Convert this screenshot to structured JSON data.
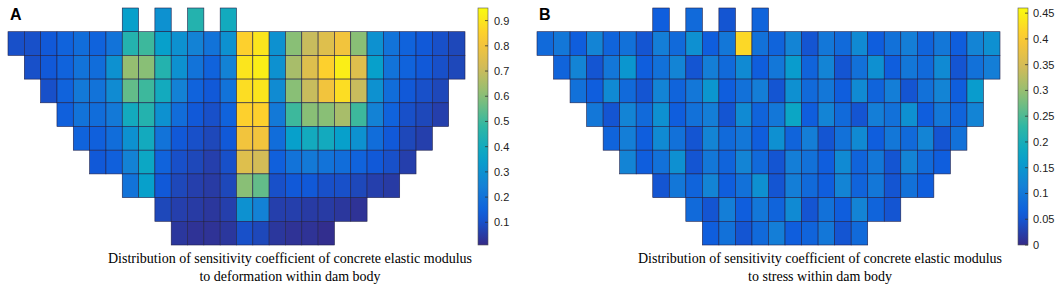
{
  "chart_data": [
    {
      "type": "heatmap",
      "title": "A",
      "caption": [
        "Distribution of sensitivity coefficient of concrete elastic modulus",
        "to deformation within dam body"
      ],
      "cells": [
        [
          null,
          null,
          null,
          null,
          null,
          null,
          null,
          0.35,
          null,
          0.3,
          null,
          0.45,
          null,
          0.4,
          null,
          null,
          null,
          null,
          null,
          null,
          null,
          null,
          null,
          null,
          null,
          null,
          null,
          null
        ],
        [
          0.1,
          0.1,
          0.12,
          0.15,
          0.18,
          0.15,
          0.2,
          0.45,
          0.5,
          0.35,
          0.3,
          0.25,
          0.2,
          0.3,
          0.85,
          0.9,
          0.3,
          0.6,
          0.7,
          0.75,
          0.8,
          0.6,
          0.3,
          0.2,
          0.15,
          0.12,
          0.1,
          0.08
        ],
        [
          null,
          0.1,
          0.12,
          0.15,
          0.2,
          0.18,
          0.3,
          0.62,
          0.6,
          0.45,
          0.3,
          0.2,
          0.15,
          0.25,
          0.9,
          0.92,
          0.3,
          0.65,
          0.75,
          0.85,
          0.92,
          0.75,
          0.35,
          0.2,
          0.15,
          0.12,
          0.1,
          0.08
        ],
        [
          null,
          null,
          0.1,
          0.15,
          0.22,
          0.2,
          0.28,
          0.55,
          0.5,
          0.4,
          0.25,
          0.15,
          0.12,
          0.2,
          0.88,
          0.9,
          0.28,
          0.6,
          0.7,
          0.8,
          0.88,
          0.7,
          0.3,
          0.18,
          0.12,
          0.1,
          0.08,
          null
        ],
        [
          null,
          null,
          null,
          0.14,
          0.2,
          0.18,
          0.22,
          0.4,
          0.45,
          0.3,
          0.18,
          0.12,
          0.1,
          0.15,
          0.85,
          0.85,
          0.22,
          0.5,
          0.6,
          0.6,
          0.65,
          0.5,
          0.25,
          0.15,
          0.1,
          0.08,
          0.06,
          null
        ],
        [
          null,
          null,
          null,
          null,
          0.15,
          0.14,
          0.18,
          0.3,
          0.4,
          0.2,
          0.12,
          0.1,
          0.08,
          0.12,
          0.8,
          0.8,
          0.18,
          0.35,
          0.4,
          0.4,
          0.35,
          0.3,
          0.18,
          0.12,
          0.08,
          0.06,
          null,
          null
        ],
        [
          null,
          null,
          null,
          null,
          null,
          0.12,
          0.14,
          0.25,
          0.38,
          0.15,
          0.1,
          0.08,
          0.06,
          0.1,
          0.75,
          0.72,
          0.14,
          0.2,
          0.22,
          0.2,
          0.18,
          0.15,
          0.12,
          0.1,
          0.06,
          null,
          null,
          null
        ],
        [
          null,
          null,
          null,
          null,
          null,
          null,
          null,
          0.2,
          0.35,
          0.12,
          0.08,
          0.06,
          0.05,
          0.08,
          0.6,
          0.55,
          0.1,
          0.12,
          0.12,
          0.1,
          0.1,
          0.08,
          0.06,
          0.05,
          null,
          null,
          null,
          null
        ],
        [
          null,
          null,
          null,
          null,
          null,
          null,
          null,
          null,
          null,
          0.08,
          0.06,
          0.05,
          0.04,
          0.06,
          0.3,
          0.25,
          0.06,
          0.06,
          0.05,
          0.05,
          0.04,
          0.03,
          null,
          null,
          null,
          null,
          null,
          null
        ],
        [
          null,
          null,
          null,
          null,
          null,
          null,
          null,
          null,
          null,
          null,
          0.04,
          0.03,
          0.03,
          0.04,
          0.1,
          0.08,
          0.04,
          0.03,
          0.03,
          0.02,
          null,
          null,
          null,
          null,
          null,
          null,
          null,
          null
        ]
      ],
      "colorbar_range": [
        0.01,
        0.95
      ],
      "colorbar_ticks": [
        0.1,
        0.2,
        0.3,
        0.4,
        0.5,
        0.6,
        0.7,
        0.8,
        0.9
      ]
    },
    {
      "type": "heatmap",
      "title": "B",
      "caption": [
        "Distribution of sensitivity coefficient of concrete elastic modulus",
        "to stress within dam body"
      ],
      "cells": [
        [
          null,
          null,
          null,
          null,
          null,
          null,
          null,
          0.06,
          null,
          0.08,
          null,
          0.05,
          null,
          0.07,
          null,
          null,
          null,
          null,
          null,
          null,
          null,
          null,
          null,
          null,
          null,
          null,
          null,
          null
        ],
        [
          0.08,
          0.1,
          0.06,
          0.12,
          0.07,
          0.09,
          0.05,
          0.11,
          0.08,
          0.14,
          0.06,
          0.1,
          0.42,
          0.09,
          0.07,
          0.12,
          0.05,
          0.1,
          0.08,
          0.13,
          0.06,
          0.09,
          0.11,
          0.07,
          0.1,
          0.06,
          0.12,
          0.14
        ],
        [
          null,
          0.07,
          0.12,
          0.05,
          0.1,
          0.15,
          0.06,
          0.09,
          0.12,
          0.05,
          0.11,
          0.08,
          0.13,
          0.06,
          0.1,
          0.16,
          0.07,
          0.12,
          0.05,
          0.09,
          0.14,
          0.06,
          0.1,
          0.08,
          0.13,
          0.05,
          0.09,
          0.11
        ],
        [
          null,
          null,
          0.09,
          0.06,
          0.13,
          0.08,
          0.05,
          0.12,
          0.07,
          0.1,
          0.15,
          0.06,
          0.09,
          0.11,
          0.05,
          0.14,
          0.08,
          0.1,
          0.06,
          0.13,
          0.07,
          0.11,
          0.05,
          0.09,
          0.12,
          0.06,
          0.16,
          null
        ],
        [
          null,
          null,
          null,
          0.1,
          0.05,
          0.12,
          0.08,
          0.14,
          0.06,
          0.09,
          0.11,
          0.05,
          0.13,
          0.07,
          0.1,
          0.18,
          0.06,
          0.12,
          0.08,
          0.05,
          0.11,
          0.09,
          0.14,
          0.06,
          0.1,
          0.07,
          0.12,
          null
        ],
        [
          null,
          null,
          null,
          null,
          0.07,
          0.11,
          0.06,
          0.13,
          0.09,
          0.05,
          0.12,
          0.08,
          0.1,
          0.06,
          0.14,
          0.07,
          0.11,
          0.05,
          0.09,
          0.13,
          0.06,
          0.1,
          0.08,
          0.12,
          0.05,
          0.09,
          null,
          null
        ],
        [
          null,
          null,
          null,
          null,
          null,
          0.12,
          0.06,
          0.09,
          0.14,
          0.05,
          0.1,
          0.07,
          0.12,
          0.08,
          0.05,
          0.11,
          0.09,
          0.06,
          0.13,
          0.07,
          0.1,
          0.05,
          0.12,
          0.08,
          0.06,
          null,
          null,
          null
        ],
        [
          null,
          null,
          null,
          null,
          null,
          null,
          null,
          0.05,
          0.1,
          0.07,
          0.12,
          0.06,
          0.09,
          0.14,
          0.05,
          0.11,
          0.08,
          0.06,
          0.12,
          0.07,
          0.1,
          0.05,
          0.09,
          0.06,
          null,
          null,
          null,
          null
        ],
        [
          null,
          null,
          null,
          null,
          null,
          null,
          null,
          null,
          null,
          0.08,
          0.05,
          0.11,
          0.06,
          0.1,
          0.07,
          0.13,
          0.05,
          0.09,
          0.06,
          0.12,
          0.07,
          0.05,
          null,
          null,
          null,
          null,
          null,
          null
        ],
        [
          null,
          null,
          null,
          null,
          null,
          null,
          null,
          null,
          null,
          null,
          0.06,
          0.09,
          0.05,
          0.08,
          0.11,
          0.06,
          0.07,
          0.1,
          0.05,
          0.08,
          null,
          null,
          null,
          null,
          null,
          null,
          null,
          null
        ]
      ],
      "colorbar_range": [
        0,
        0.46
      ],
      "colorbar_ticks": [
        0,
        0.05,
        0.1,
        0.15,
        0.2,
        0.25,
        0.3,
        0.35,
        0.4,
        0.45
      ]
    }
  ]
}
